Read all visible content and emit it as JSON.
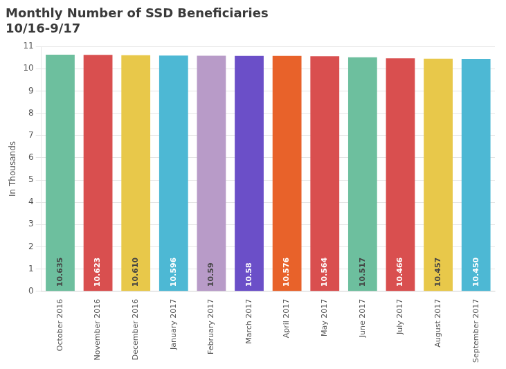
{
  "chart_data": {
    "type": "bar",
    "title": "Monthly Number of SSD Beneficiaries\n10/16-9/17",
    "ylabel": "In Thousands",
    "categories": [
      "October 2016",
      "November 2016",
      "December 2016",
      "January 2017",
      "February 2017",
      "March 2017",
      "April 2017",
      "May 2017",
      "June 2017",
      "July 2017",
      "August 2017",
      "September 2017"
    ],
    "values": [
      10.635,
      10.623,
      10.61,
      10.596,
      10.59,
      10.58,
      10.576,
      10.564,
      10.517,
      10.466,
      10.457,
      10.45
    ],
    "value_labels": [
      "10.635",
      "10.623",
      "10.610",
      "10.596",
      "10.59",
      "10.58",
      "10.576",
      "10.564",
      "10.517",
      "10.466",
      "10.457",
      "10.450"
    ],
    "data_labels": true,
    "colors": [
      "#6dbf9e",
      "#d94f4f",
      "#e8c84a",
      "#4db8d4",
      "#b89bc8",
      "#6b4fc8",
      "#e8622a",
      "#d94f4f",
      "#6dbf9e",
      "#d94f4f",
      "#e8c84a",
      "#4db8d4"
    ],
    "ylim": [
      0,
      11
    ],
    "yticks": [
      0,
      1,
      2,
      3,
      4,
      5,
      6,
      7,
      8,
      9,
      10,
      11
    ],
    "grid": true
  }
}
